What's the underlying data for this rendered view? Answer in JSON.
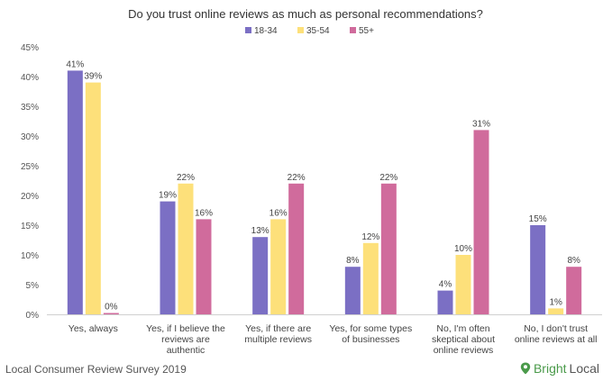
{
  "chart_data": {
    "type": "bar",
    "title": "Do you trust online reviews as much as personal recommendations?",
    "xlabel": "",
    "ylabel": "",
    "ylim": [
      0,
      45
    ],
    "yticks": [
      0,
      5,
      10,
      15,
      20,
      25,
      30,
      35,
      40,
      45
    ],
    "ytick_labels": [
      "0%",
      "5%",
      "10%",
      "15%",
      "20%",
      "25%",
      "30%",
      "35%",
      "40%",
      "45%"
    ],
    "grid": false,
    "legend_position": "top-center",
    "categories": [
      [
        "Yes, always"
      ],
      [
        "Yes, if I believe the",
        "reviews are",
        "authentic"
      ],
      [
        "Yes, if there are",
        "multiple reviews"
      ],
      [
        "Yes, for some types",
        "of businesses"
      ],
      [
        "No, I'm often",
        "skeptical about",
        "online reviews"
      ],
      [
        "No, I don't trust",
        "online reviews at all"
      ]
    ],
    "series": [
      {
        "name": "18-34",
        "color": "#7b6fc4",
        "values": [
          41,
          19,
          13,
          8,
          4,
          15
        ],
        "labels": [
          "41%",
          "19%",
          "13%",
          "8%",
          "4%",
          "15%"
        ]
      },
      {
        "name": "35-54",
        "color": "#fde07a",
        "values": [
          39,
          22,
          16,
          12,
          10,
          1
        ],
        "labels": [
          "39%",
          "22%",
          "16%",
          "12%",
          "10%",
          "1%"
        ]
      },
      {
        "name": "55+",
        "color": "#d06b9c",
        "values": [
          0,
          16,
          22,
          22,
          31,
          8
        ],
        "labels": [
          "0%",
          "16%",
          "22%",
          "22%",
          "31%",
          "8%"
        ]
      }
    ]
  },
  "footer": {
    "source": "Local Consumer Review Survey 2019"
  },
  "brand": {
    "name_part1": "Bright",
    "name_part2": "Local",
    "icon": "location-pin-icon"
  }
}
